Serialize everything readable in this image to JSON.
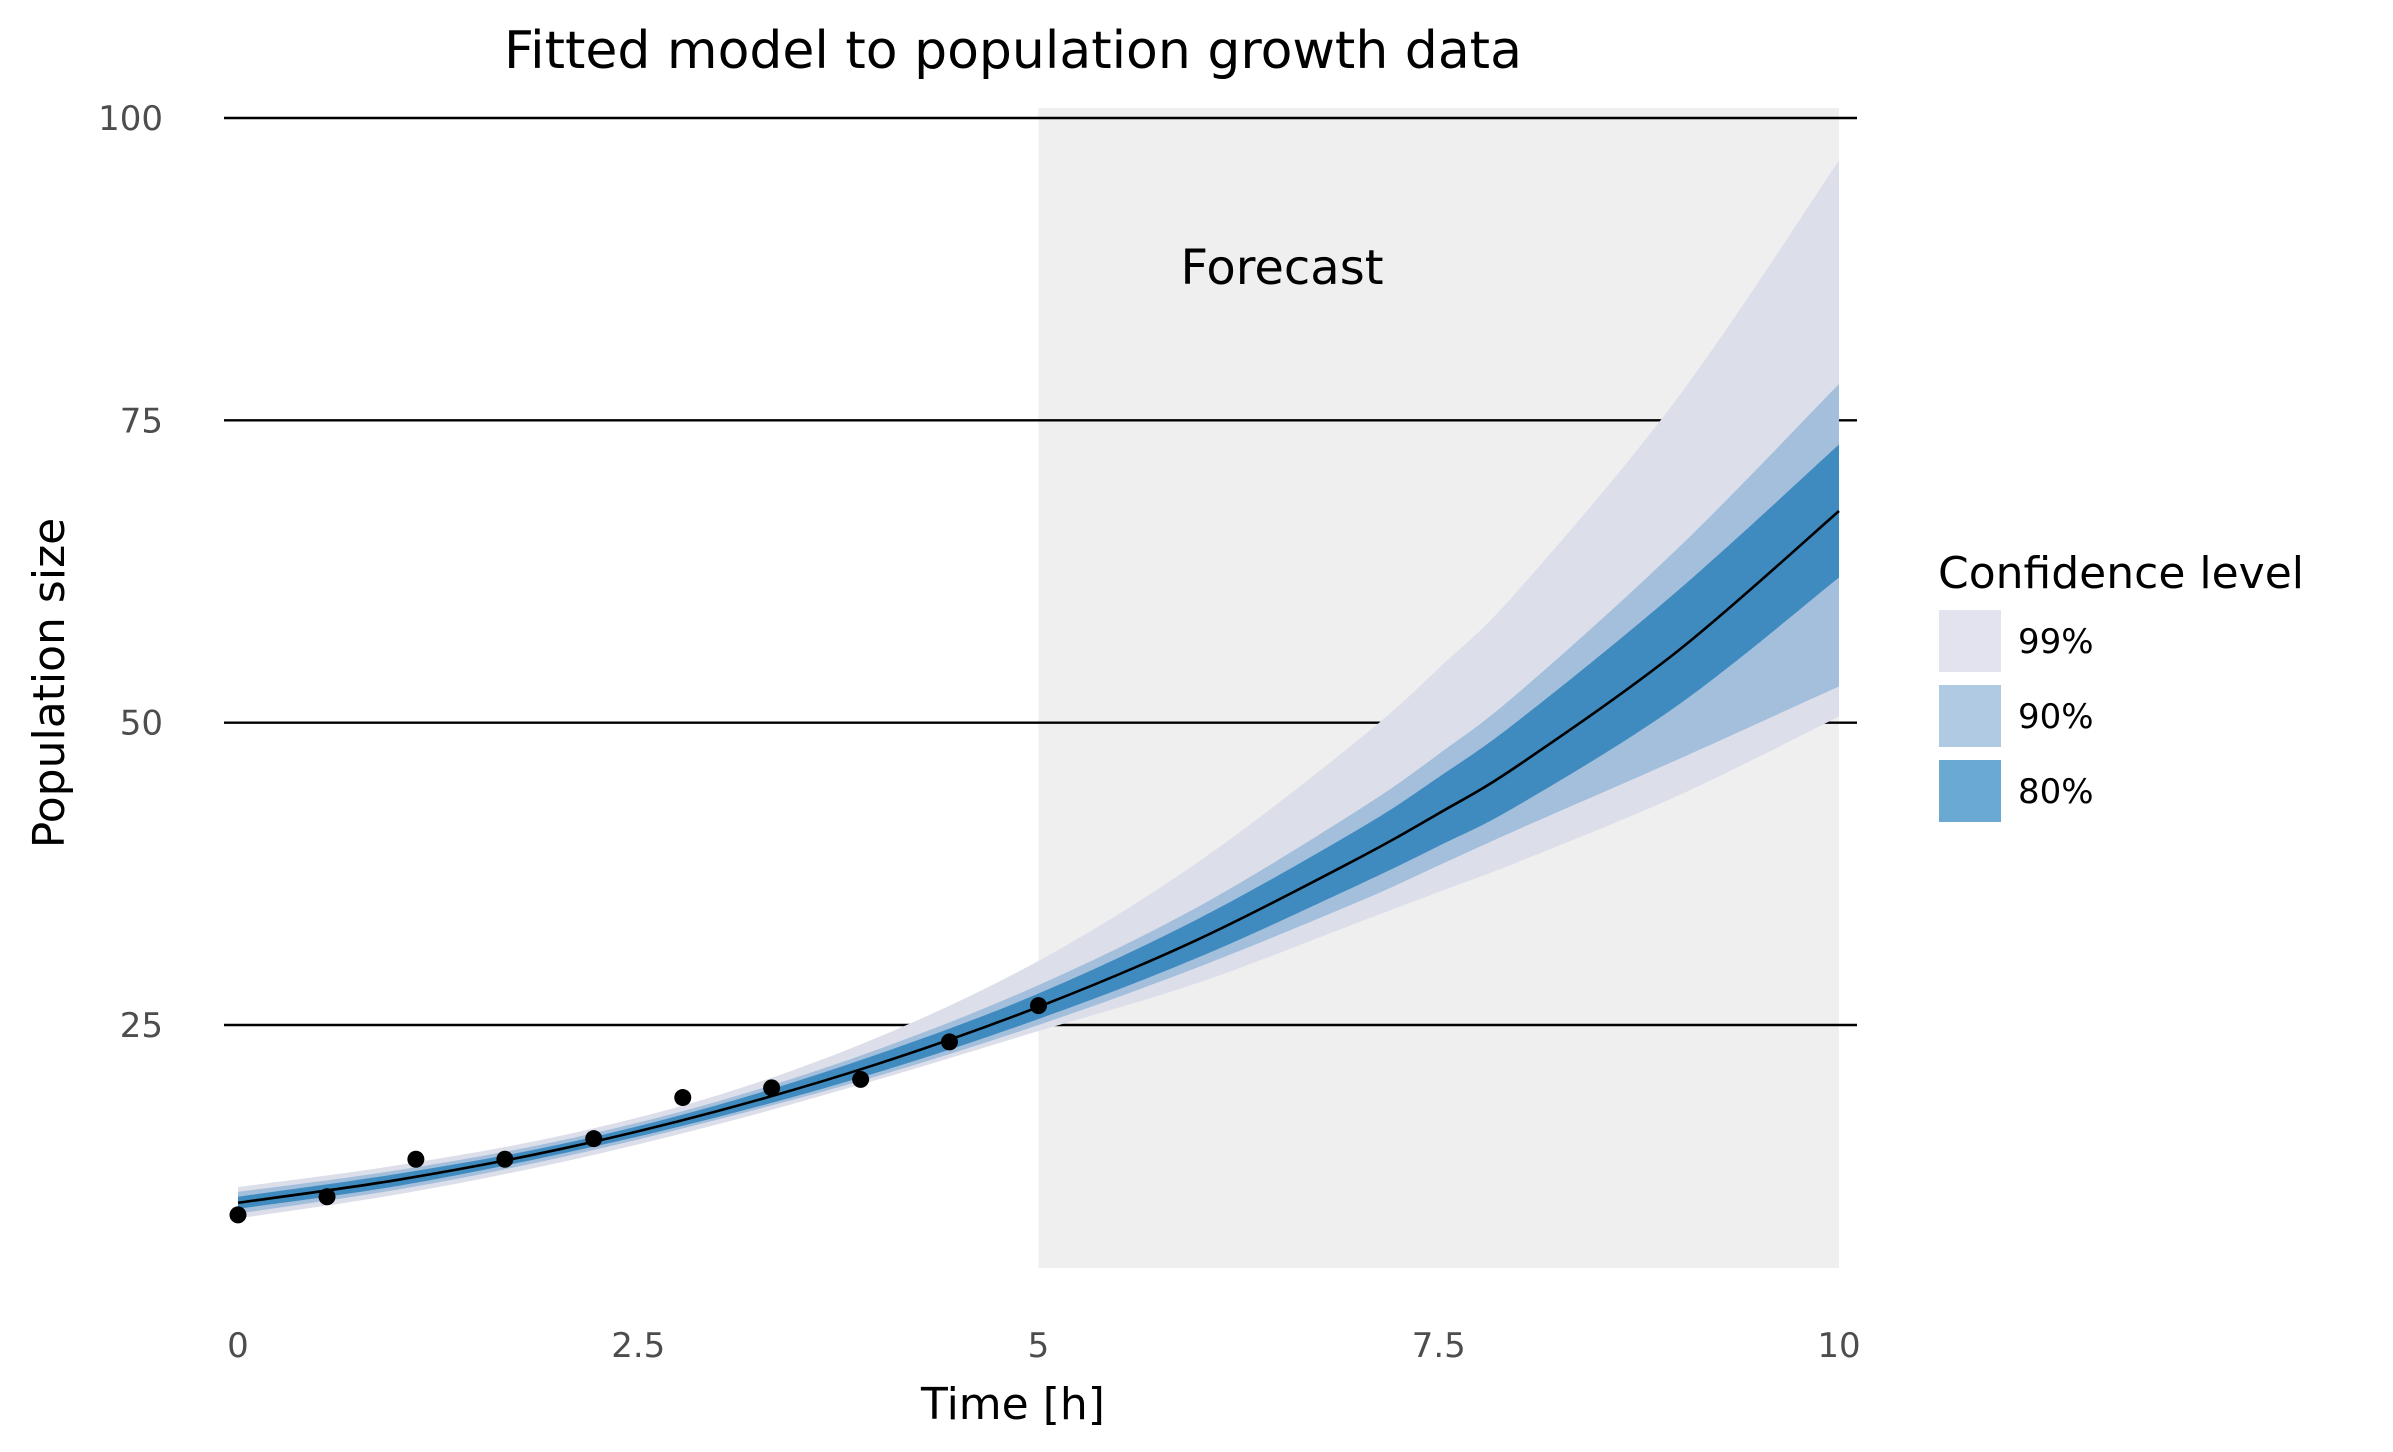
{
  "chart_data": {
    "type": "line",
    "title": "Fitted model to population growth data",
    "xlabel": "Time [h]",
    "ylabel": "Population size",
    "xlim": [
      0,
      10
    ],
    "ylim": [
      5,
      100
    ],
    "x_ticks": [
      0,
      2.5,
      5,
      7.5,
      10
    ],
    "x_tick_labels": [
      "0",
      "2.5",
      "5",
      "7.5",
      "10"
    ],
    "y_ticks": [
      25,
      50,
      75,
      100
    ],
    "y_tick_labels": [
      "25",
      "50",
      "75",
      "100"
    ],
    "grid": "horizontal",
    "forecast_region": {
      "x_start": 5,
      "x_end": 10,
      "label": "Forecast"
    },
    "fitted_curve": {
      "x": [
        0,
        1,
        2,
        3,
        4,
        5,
        6,
        7,
        7.5,
        8,
        9,
        10
      ],
      "y": [
        10.3,
        12.2,
        14.7,
        17.9,
        21.8,
        26.5,
        32.1,
        38.8,
        42.5,
        46.5,
        56,
        67.5
      ]
    },
    "bands": [
      {
        "name": "99%",
        "color": "#dcdeea",
        "x": [
          0,
          1,
          2,
          3,
          4,
          5,
          6,
          7,
          7.5,
          8,
          9,
          10
        ],
        "upper": [
          11.6,
          13.4,
          15.8,
          19.2,
          24.0,
          30.3,
          38.5,
          48.6,
          54.5,
          61,
          77,
          96.5
        ],
        "lower": [
          9.0,
          11.0,
          13.6,
          16.8,
          20.5,
          24.5,
          28.5,
          33.5,
          36,
          38.5,
          44,
          50.5
        ]
      },
      {
        "name": "90%",
        "color": "#a3bfdb",
        "x": [
          0,
          1,
          2,
          3,
          4,
          5,
          6,
          7,
          7.5,
          8,
          9,
          10
        ],
        "upper": [
          11.2,
          13.0,
          15.4,
          18.7,
          23.0,
          28.3,
          34.8,
          42.8,
          47.4,
          52.5,
          64.5,
          78
        ],
        "lower": [
          9.4,
          11.4,
          14.0,
          17.2,
          20.8,
          25.0,
          29.8,
          35.2,
          38.2,
          41.2,
          47,
          53
        ]
      },
      {
        "name": "80%",
        "color": "#3f8bc0",
        "x": [
          0,
          1,
          2,
          3,
          4,
          5,
          6,
          7,
          7.5,
          8,
          9,
          10
        ],
        "upper": [
          10.8,
          12.7,
          15.1,
          18.4,
          22.6,
          27.6,
          33.8,
          41.2,
          45.5,
          50.2,
          61,
          73
        ],
        "lower": [
          9.8,
          11.7,
          14.3,
          17.4,
          21.1,
          25.5,
          30.6,
          36.6,
          39.8,
          43.2,
          51.5,
          62
        ]
      }
    ],
    "observed_points": {
      "x": [
        0,
        0.556,
        1.111,
        1.667,
        2.222,
        2.778,
        3.333,
        3.889,
        4.444,
        5.0
      ],
      "y": [
        9.3,
        10.8,
        13.9,
        13.9,
        15.6,
        19.0,
        19.8,
        20.5,
        23.6,
        26.6
      ]
    },
    "legend": {
      "title": "Confidence level",
      "placement": "right",
      "items": [
        {
          "label": "99%",
          "color": "#e3e3ef"
        },
        {
          "label": "90%",
          "color": "#afcae2"
        },
        {
          "label": "80%",
          "color": "#6aaad2"
        }
      ]
    },
    "colors": {
      "forecast_background": "#efefef",
      "gridline": "#000000",
      "curve": "#000000",
      "points": "#000000"
    }
  }
}
